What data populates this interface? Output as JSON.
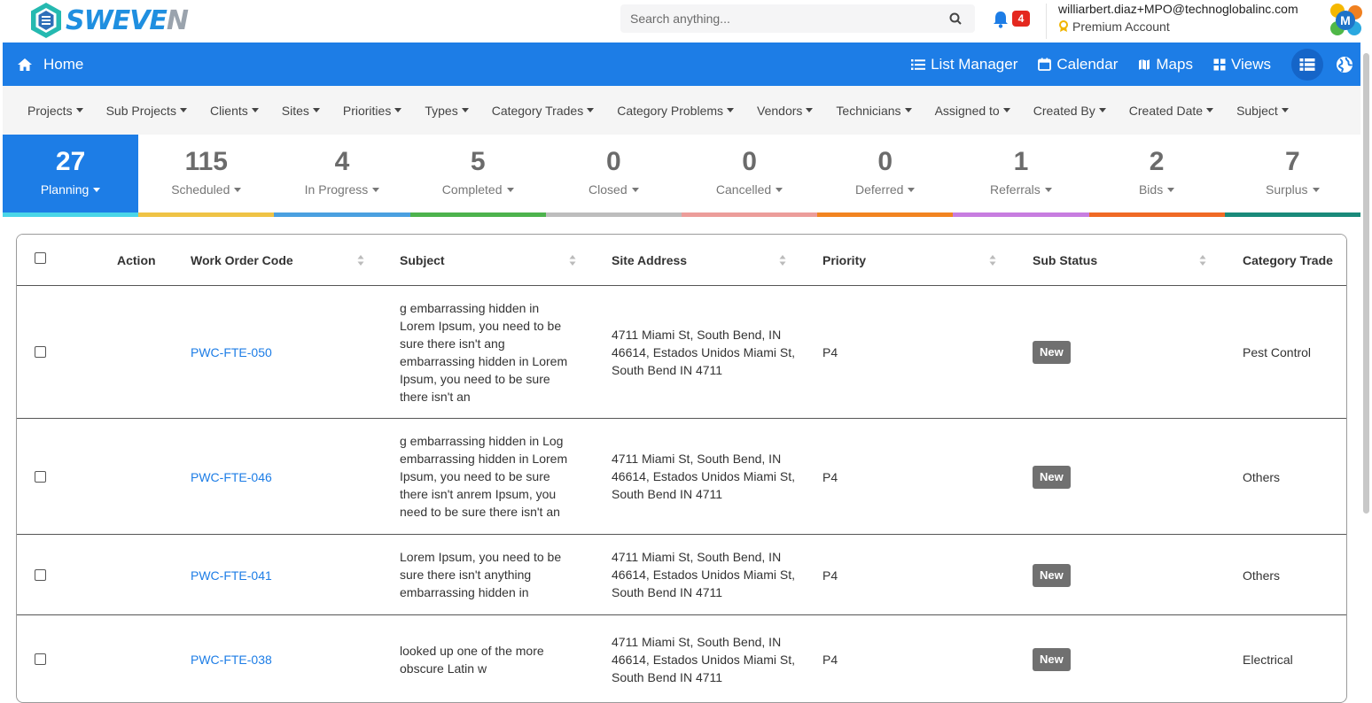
{
  "brand": {
    "name_main": "SWEVE",
    "name_tail": "N",
    "accent": "#1d7de6"
  },
  "search": {
    "placeholder": "Search anything..."
  },
  "notifications": {
    "count": "4"
  },
  "user": {
    "email": "williarbert.diaz+MPO@technoglobalinc.com",
    "plan": "Premium Account",
    "avatar_initial": "M"
  },
  "nav": {
    "home": "Home",
    "links": [
      "List Manager",
      "Calendar",
      "Maps",
      "Views"
    ]
  },
  "filters": [
    "Projects",
    "Sub Projects",
    "Clients",
    "Sites",
    "Priorities",
    "Types",
    "Category Trades",
    "Category Problems",
    "Vendors",
    "Technicians",
    "Assigned to",
    "Created By",
    "Created Date",
    "Subject"
  ],
  "statuses": [
    {
      "count": "27",
      "label": "Planning",
      "color": "#4ad6e8"
    },
    {
      "count": "115",
      "label": "Scheduled",
      "color": "#efc345"
    },
    {
      "count": "4",
      "label": "In Progress",
      "color": "#4aa0e0"
    },
    {
      "count": "5",
      "label": "Completed",
      "color": "#4db34d"
    },
    {
      "count": "0",
      "label": "Closed",
      "color": "#bdbdbd"
    },
    {
      "count": "0",
      "label": "Cancelled",
      "color": "#ec9d9a"
    },
    {
      "count": "0",
      "label": "Deferred",
      "color": "#f28420"
    },
    {
      "count": "1",
      "label": "Referrals",
      "color": "#c77de0"
    },
    {
      "count": "2",
      "label": "Bids",
      "color": "#f06a25"
    },
    {
      "count": "7",
      "label": "Surplus",
      "color": "#1a8a7a"
    }
  ],
  "table": {
    "headers": {
      "action": "Action",
      "code": "Work Order Code",
      "subject": "Subject",
      "address": "Site Address",
      "priority": "Priority",
      "substatus": "Sub Status",
      "trade": "Category Trade"
    },
    "rows": [
      {
        "code": "PWC-FTE-050",
        "subject": "g embarrassing hidden in Lorem Ipsum, you need to be sure there isn't ang embarrassing hidden in Lorem Ipsum, you need to be sure there isn't an",
        "address": "4711 Miami St, South Bend, IN 46614, Estados Unidos Miami St, South Bend IN 4711",
        "priority": "P4",
        "substatus": "New",
        "trade": "Pest Control"
      },
      {
        "code": "PWC-FTE-046",
        "subject": "g embarrassing hidden in Log embarrassing hidden in Lorem Ipsum, you need to be sure there isn't anrem Ipsum, you need to be sure there isn't an",
        "address": "4711 Miami St, South Bend, IN 46614, Estados Unidos Miami St, South Bend IN 4711",
        "priority": "P4",
        "substatus": "New",
        "trade": "Others"
      },
      {
        "code": "PWC-FTE-041",
        "subject": "Lorem Ipsum, you need to be sure there isn't anything embarrassing hidden in",
        "address": "4711 Miami St, South Bend, IN 46614, Estados Unidos Miami St, South Bend IN 4711",
        "priority": "P4",
        "substatus": "New",
        "trade": "Others"
      },
      {
        "code": "PWC-FTE-038",
        "subject": "looked up one of the more obscure Latin w",
        "address": "4711 Miami St, South Bend, IN 46614, Estados Unidos Miami St, South Bend IN 4711",
        "priority": "P4",
        "substatus": "New",
        "trade": "Electrical"
      }
    ]
  }
}
